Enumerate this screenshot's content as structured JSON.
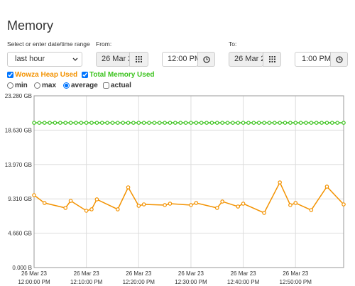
{
  "header": {
    "title": "Memory"
  },
  "range": {
    "label": "Select or enter date/time range",
    "value": "last hour"
  },
  "from": {
    "label": "From:",
    "date": "26 Mar 2",
    "time": "12:00 PM"
  },
  "to": {
    "label": "To:",
    "date": "26 Mar 2",
    "time": "1:00 PM"
  },
  "modes": [
    {
      "label": "min",
      "checked": false
    },
    {
      "label": "max",
      "checked": false
    },
    {
      "label": "average",
      "checked": true
    }
  ],
  "actual": {
    "label": "actual",
    "checked": false
  },
  "chart_data": {
    "type": "line",
    "xlim": [
      0,
      59.2
    ],
    "ylim": [
      0,
      23.28
    ],
    "xticks": [
      {
        "value": 0,
        "label": [
          "26 Mar 23",
          "12:00:00 PM"
        ]
      },
      {
        "value": 10,
        "label": [
          "26 Mar 23",
          "12:10:00 PM"
        ]
      },
      {
        "value": 20,
        "label": [
          "26 Mar 23",
          "12:20:00 PM"
        ]
      },
      {
        "value": 30,
        "label": [
          "26 Mar 23",
          "12:30:00 PM"
        ]
      },
      {
        "value": 40,
        "label": [
          "26 Mar 23",
          "12:40:00 PM"
        ]
      },
      {
        "value": 50,
        "label": [
          "26 Mar 23",
          "12:50:00 PM"
        ]
      }
    ],
    "yticks": [
      {
        "value": 0,
        "label": "0.000 B"
      },
      {
        "value": 4.66,
        "label": "4.660 GB"
      },
      {
        "value": 9.31,
        "label": "9.310 GB"
      },
      {
        "value": 13.97,
        "label": "13.970 GB"
      },
      {
        "value": 18.63,
        "label": "18.630 GB"
      },
      {
        "value": 23.28,
        "label": "23.280 GB"
      }
    ],
    "grid": true,
    "series": [
      {
        "name": "Wowza Heap Used",
        "color": "#f39200",
        "checked": true,
        "x": [
          0,
          2,
          6,
          7,
          10,
          11,
          12,
          16,
          18,
          20,
          21,
          25,
          26,
          30,
          31,
          35,
          36,
          39,
          40,
          44,
          47,
          49,
          50,
          53,
          56,
          59.2
        ],
        "values": [
          9.81,
          8.75,
          8.08,
          9.04,
          7.7,
          7.89,
          9.24,
          7.89,
          10.87,
          8.37,
          8.56,
          8.47,
          8.66,
          8.47,
          8.75,
          8.08,
          8.95,
          8.27,
          8.66,
          7.41,
          11.54,
          8.47,
          8.75,
          7.79,
          10.97,
          8.56
        ]
      },
      {
        "name": "Total Memory Used",
        "color": "#3cc31e",
        "checked": true,
        "x": [
          0,
          1,
          2,
          3,
          4,
          5,
          6,
          7,
          8,
          9,
          10,
          11,
          12,
          13,
          14,
          15,
          16,
          17,
          18,
          19,
          20,
          21,
          22,
          23,
          24,
          25,
          26,
          27,
          28,
          29,
          30,
          31,
          32,
          33,
          34,
          35,
          36,
          37,
          38,
          39,
          40,
          41,
          42,
          43,
          44,
          45,
          46,
          47,
          48,
          49,
          50,
          51,
          52,
          53,
          54,
          55,
          56,
          57,
          58,
          59.2
        ],
        "values": [
          19.62,
          19.62,
          19.62,
          19.62,
          19.62,
          19.62,
          19.62,
          19.62,
          19.62,
          19.62,
          19.62,
          19.62,
          19.62,
          19.62,
          19.62,
          19.62,
          19.62,
          19.62,
          19.62,
          19.62,
          19.62,
          19.62,
          19.62,
          19.62,
          19.62,
          19.62,
          19.62,
          19.62,
          19.62,
          19.62,
          19.62,
          19.62,
          19.62,
          19.62,
          19.62,
          19.62,
          19.62,
          19.62,
          19.62,
          19.62,
          19.62,
          19.62,
          19.62,
          19.62,
          19.62,
          19.62,
          19.62,
          19.62,
          19.62,
          19.62,
          19.62,
          19.62,
          19.62,
          19.62,
          19.62,
          19.62,
          19.62,
          19.62,
          19.62,
          19.62
        ]
      }
    ]
  }
}
